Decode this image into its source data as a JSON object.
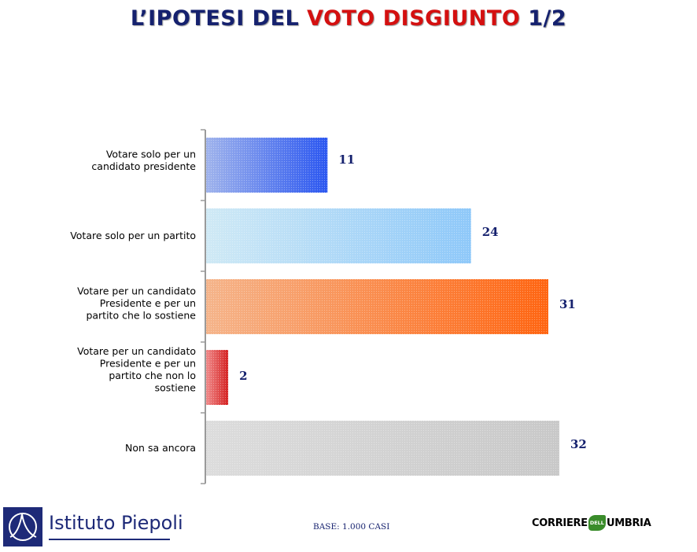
{
  "title": {
    "part1": "L’IPOTESI DEL",
    "part2": "VOTO DISGIUNTO",
    "part3": "1/2"
  },
  "footer": {
    "base_note": "BASE: 1.000 CASI",
    "left_logo_text": "Istituto Piepoli",
    "right_logo_part1": "CORRIERE",
    "right_logo_part2": "DELL",
    "right_logo_part3": "UMBRIA"
  },
  "colors": {
    "title_blue": "#15216e",
    "title_red": "#d41010",
    "value_text": "#15216e"
  },
  "chart_data": {
    "type": "bar",
    "orientation": "horizontal",
    "categories": [
      [
        "Votare solo per un",
        "candidato presidente"
      ],
      [
        "Votare solo per un partito"
      ],
      [
        "Votare per un candidato",
        "Presidente e per un",
        "partito che lo sostiene"
      ],
      [
        "Votare per un candidato",
        "Presidente e per un",
        "partito che non lo",
        "sostiene"
      ],
      [
        "Non sa ancora"
      ]
    ],
    "values": [
      11,
      24,
      31,
      2,
      32
    ],
    "xlim": [
      0,
      32
    ],
    "grid": false,
    "bar_colors": [
      [
        "#9fb3ec",
        "#2a56f0"
      ],
      [
        "#cfe9f5",
        "#8ec8f9"
      ],
      [
        "#f5b48a",
        "#ff6410"
      ],
      [
        "#f08a8a",
        "#d42020"
      ],
      [
        "#dcdcdc",
        "#c8c8c8"
      ]
    ]
  }
}
